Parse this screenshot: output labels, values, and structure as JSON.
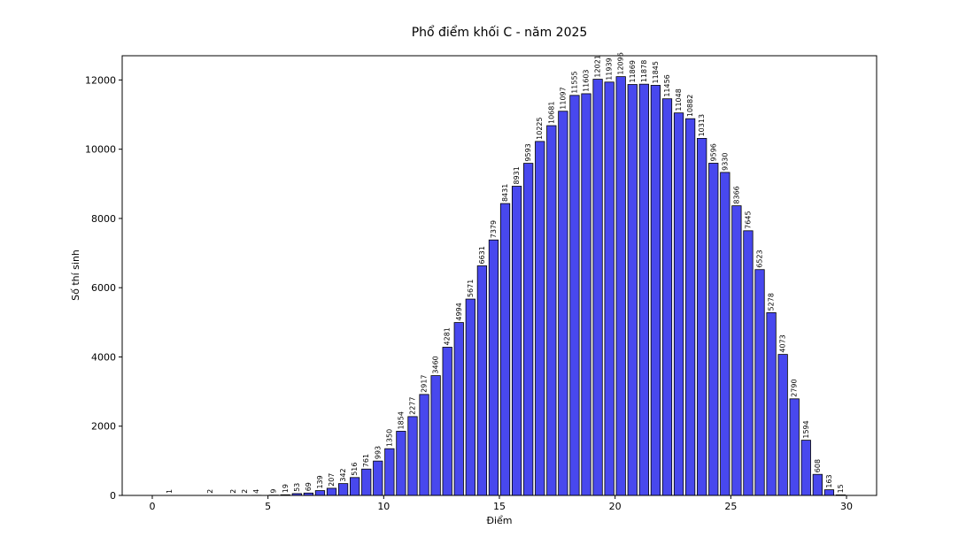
{
  "chart_data": {
    "type": "bar",
    "title": "Phổ điểm khối C - năm 2025",
    "xlabel": "Điểm",
    "ylabel": "Số thí sinh",
    "xlim": [
      -1.3,
      31.3
    ],
    "ylim": [
      0,
      12700
    ],
    "xticks": [
      0,
      5,
      10,
      15,
      20,
      25,
      30
    ],
    "yticks": [
      0,
      2000,
      4000,
      6000,
      8000,
      10000,
      12000
    ],
    "bar_width": 0.4,
    "bar_color": "#4848ee",
    "bar_edge_color": "#000000",
    "grid": false,
    "x": [
      0.75,
      2.5,
      3.5,
      4.0,
      4.5,
      5.25,
      5.75,
      6.25,
      6.75,
      7.25,
      7.75,
      8.25,
      8.75,
      9.25,
      9.75,
      10.25,
      10.75,
      11.25,
      11.75,
      12.25,
      12.75,
      13.25,
      13.75,
      14.25,
      14.75,
      15.25,
      15.75,
      16.25,
      16.75,
      17.25,
      17.75,
      18.25,
      18.75,
      19.25,
      19.75,
      20.25,
      20.75,
      21.25,
      21.75,
      22.25,
      22.75,
      23.25,
      23.75,
      24.25,
      24.75,
      25.25,
      25.75,
      26.25,
      26.75,
      27.25,
      27.75,
      28.25,
      28.75,
      29.25,
      29.75
    ],
    "values": [
      1,
      2,
      2,
      2,
      4,
      9,
      19,
      53,
      69,
      139,
      207,
      342,
      516,
      761,
      993,
      1350,
      1854,
      2277,
      2917,
      3460,
      4281,
      4994,
      5671,
      6631,
      7379,
      8431,
      8931,
      9593,
      10225,
      10681,
      11097,
      11555,
      11603,
      12021,
      11939,
      12096,
      11869,
      11878,
      11845,
      11456,
      11048,
      10882,
      10313,
      9596,
      9330,
      8366,
      7645,
      6523,
      5278,
      4073,
      2790,
      1594,
      608,
      163,
      15
    ]
  }
}
